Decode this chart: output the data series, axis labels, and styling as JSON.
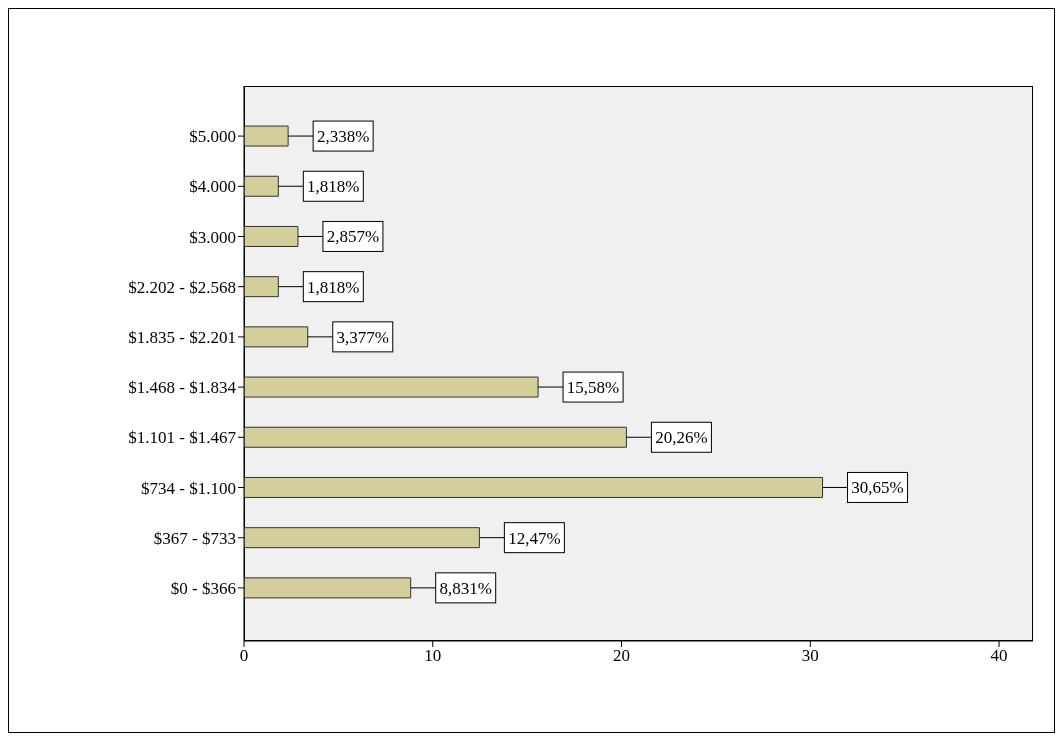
{
  "chart_data": {
    "type": "bar",
    "orientation": "horizontal",
    "categories": [
      "$5.000",
      "$4.000",
      "$3.000",
      "$2.202 - $2.568",
      "$1.835 - $2.201",
      "$1.468 - $1.834",
      "$1.101 - $1.467",
      "$734 - $1.100",
      "$367 - $733",
      "$0 - $366"
    ],
    "values": [
      2.338,
      1.818,
      2.857,
      1.818,
      3.377,
      15.58,
      20.26,
      30.65,
      12.47,
      8.831
    ],
    "value_labels": [
      "2,338%",
      "1,818%",
      "2,857%",
      "1,818%",
      "3,377%",
      "15,58%",
      "20,26%",
      "30,65%",
      "12,47%",
      "8,831%"
    ],
    "color": "#d3ce9a",
    "xlim": [
      0,
      41.8
    ],
    "xticks": [
      0,
      10,
      20,
      30,
      40
    ]
  }
}
